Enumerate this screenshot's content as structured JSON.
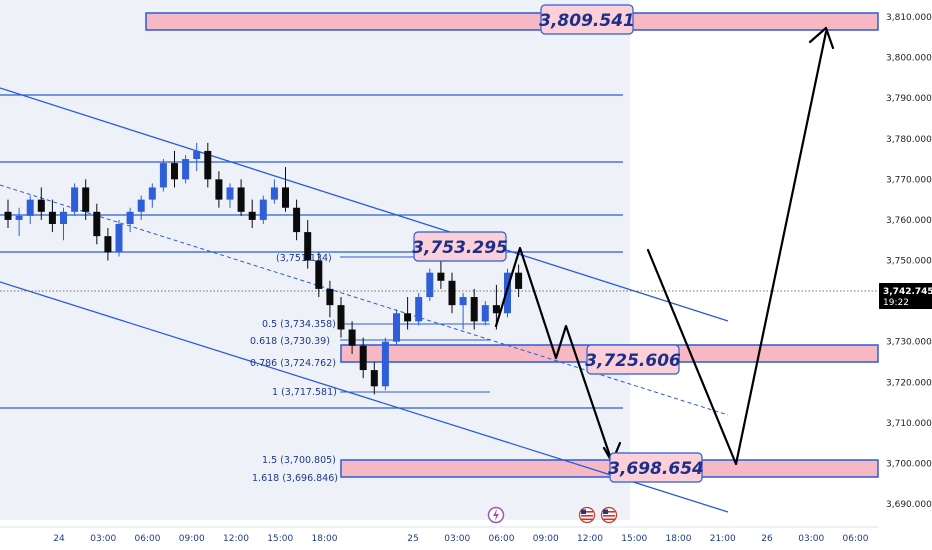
{
  "chart_data": {
    "type": "candlestick",
    "price_axis": {
      "ticks": [
        3690,
        3700,
        3710,
        3720,
        3730,
        3740,
        3750,
        3760,
        3770,
        3780,
        3790,
        3800,
        3810
      ],
      "tick_labels": [
        "3,690.000",
        "3,700.000",
        "3,710.000",
        "3,720.000",
        "3,730.000",
        "3,740.000",
        "3,750.000",
        "3,760.000",
        "3,770.000",
        "3,780.000",
        "3,790.000",
        "3,800.000",
        "3,810.000"
      ],
      "current_price": "3,742.745",
      "countdown": "19:22"
    },
    "time_axis": {
      "labels": [
        "24",
        "03:00",
        "06:00",
        "09:00",
        "12:00",
        "15:00",
        "18:00",
        "25",
        "03:00",
        "06:00",
        "09:00",
        "12:00",
        "15:00",
        "18:00",
        "21:00",
        "26",
        "03:00",
        "06:00"
      ],
      "hours_from_24": [
        0,
        3,
        6,
        9,
        12,
        15,
        18,
        24,
        27,
        30,
        33,
        36,
        39,
        42,
        45,
        48,
        51,
        54
      ]
    },
    "fib_labels": [
      {
        "text": "(3,751.134)",
        "price": 3751.134
      },
      {
        "text": "0.5 (3,734.358)",
        "price": 3734.358
      },
      {
        "text": "0.618 (3,730.39)",
        "price": 3730.39
      },
      {
        "text": "0.786 (3,724.762)",
        "price": 3724.762
      },
      {
        "text": "1 (3,717.581)",
        "price": 3717.581
      },
      {
        "text": "1.5 (3,700.805)",
        "price": 3700.805
      },
      {
        "text": "1.618 (3,696.846)",
        "price": 3696.846
      }
    ],
    "callouts": [
      {
        "text": "3,809.541",
        "price": 3809.541
      },
      {
        "text": "3,753.295",
        "price": 3753.295
      },
      {
        "text": "3,725.606",
        "price": 3725.606
      },
      {
        "text": "3,698.654",
        "price": 3698.654
      }
    ],
    "colors": {
      "up": "#2f5fd8",
      "down": "#0b0b0b",
      "line": "#2a5bd7",
      "zone_fill": "#f6b8c3",
      "callout_fill": "#fbd0d8"
    }
  }
}
